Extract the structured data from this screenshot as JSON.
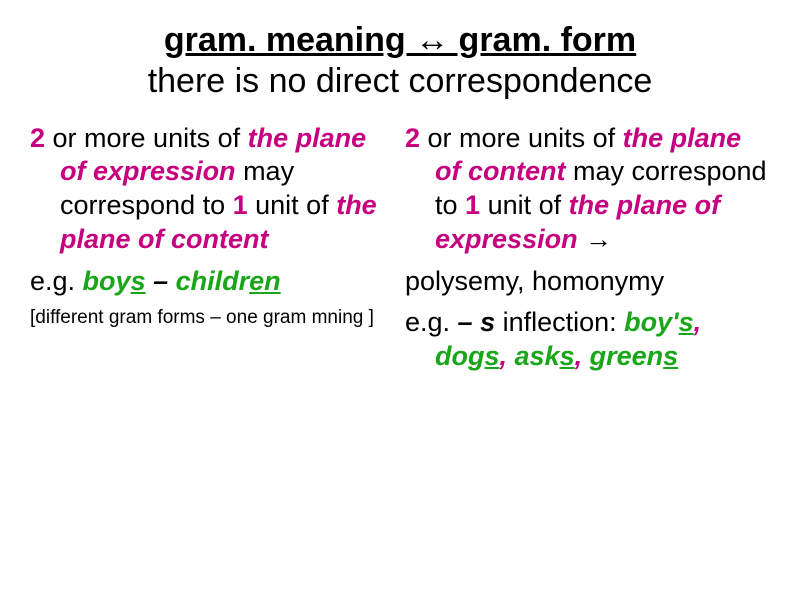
{
  "colors": {
    "pink": "#c6007e",
    "green": "#19a619",
    "black": "#000000",
    "background": "#ffffff"
  },
  "typography": {
    "title_fontsize": 34,
    "body_fontsize": 27,
    "small_fontsize": 19,
    "font_family": "Arial"
  },
  "header": {
    "line1": "gram. meaning ↔ gram. form",
    "line2": "there is no direct correspondence"
  },
  "left": {
    "num1": "2",
    "t1": " or more units of ",
    "ph1": "the plane of expression",
    "t2": " may correspond to ",
    "num2": "1",
    "t3": " unit of ",
    "ph2": "the plane of content",
    "eg": "e.g. ",
    "ex_boy": "boy",
    "ex_s": "s",
    "ex_dash": " – ",
    "ex_childr": "childr",
    "ex_en": "en",
    "note": "[different gram forms – one gram mning ]"
  },
  "right": {
    "num1": "2",
    "t1": " or more units of ",
    "ph1": "the plane of content",
    "t2": " may correspond to ",
    "num2": "1",
    "t3": " unit of ",
    "ph2": "the plane of expression",
    "arrow": " →",
    "poly": "polysemy, homonymy",
    "eg": "e.g. ",
    "infl_dash_s": "– s",
    "infl_tail": " inflection: ",
    "ex_boy": "boy'",
    "ex_boy_s": "s",
    "comma1": ", ",
    "ex_dog": "dog",
    "ex_dog_s": "s",
    "comma2": ", ",
    "ex_ask": "ask",
    "ex_ask_s": "s",
    "comma3": ", ",
    "ex_green": "green",
    "ex_green_s": "s"
  }
}
